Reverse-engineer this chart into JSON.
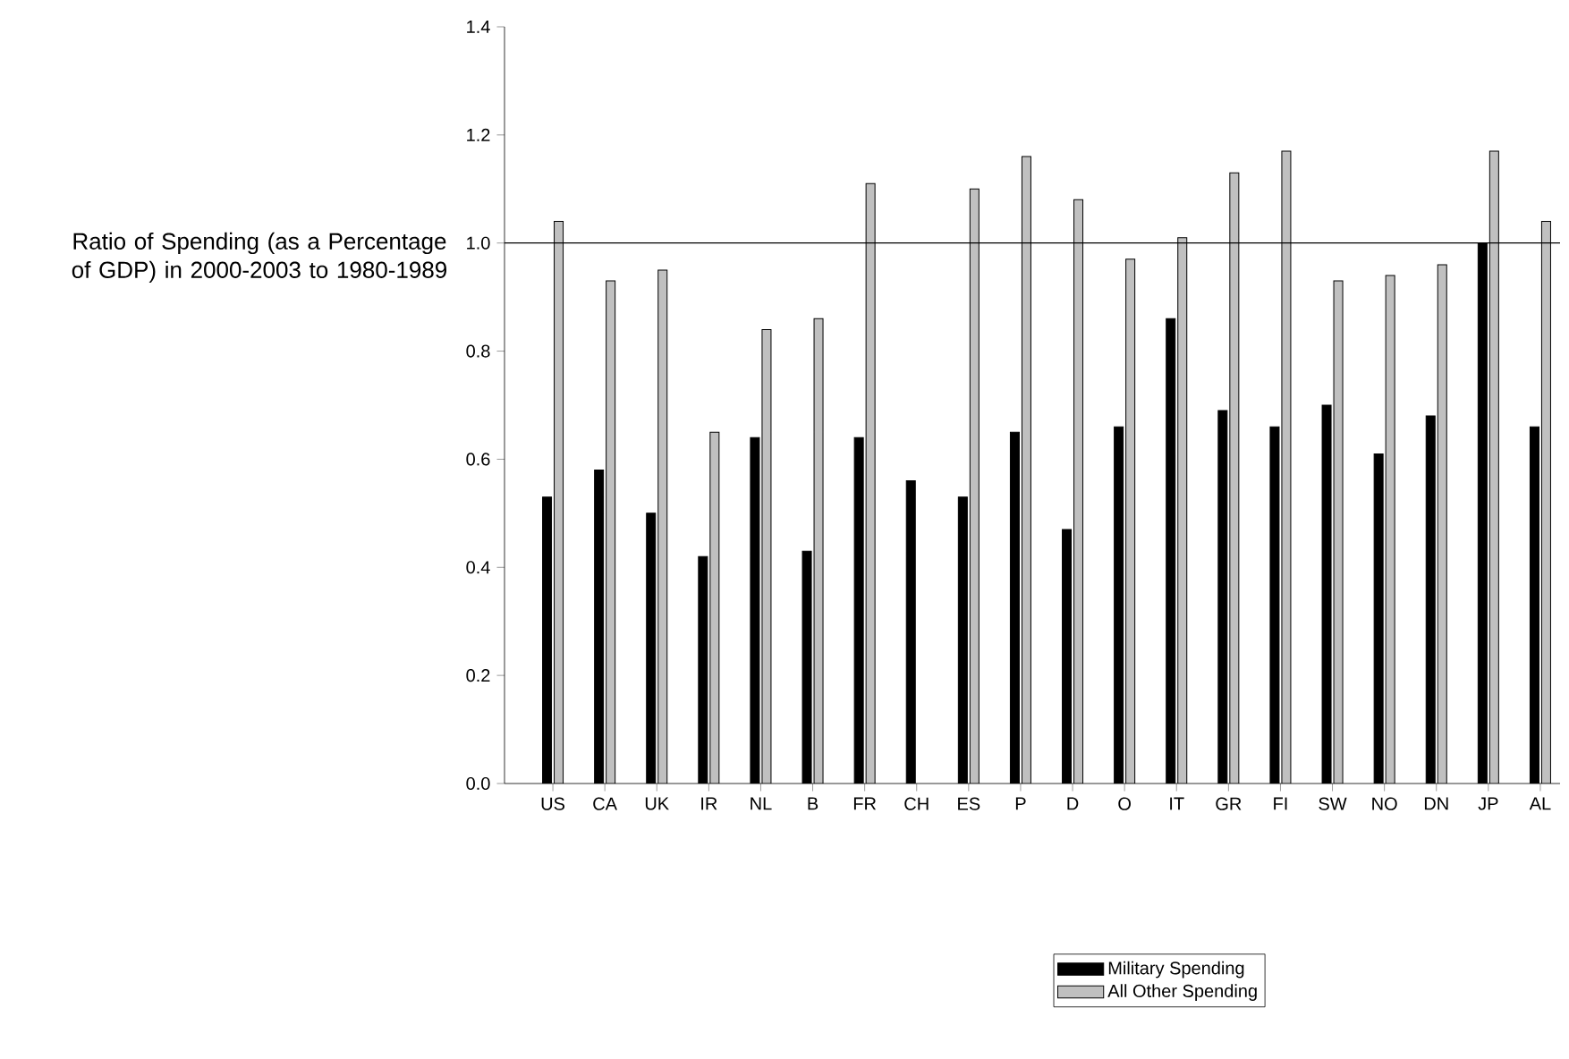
{
  "chart_data": {
    "type": "bar",
    "ylabel": "Ratio of Spending (as a Percentage of GDP) in 2000-2003 to 1980-1989",
    "categories": [
      "US",
      "CA",
      "UK",
      "IR",
      "NL",
      "B",
      "FR",
      "CH",
      "ES",
      "P",
      "D",
      "O",
      "IT",
      "GR",
      "FI",
      "SW",
      "NO",
      "DN",
      "JP",
      "AL"
    ],
    "series": [
      {
        "name": "Military Spending",
        "color": "#000000",
        "values": [
          0.53,
          0.58,
          0.5,
          0.42,
          0.64,
          0.43,
          0.64,
          0.56,
          0.53,
          0.65,
          0.47,
          0.66,
          0.86,
          0.69,
          0.66,
          0.7,
          0.61,
          0.68,
          1.0,
          0.66
        ]
      },
      {
        "name": "All Other Spending",
        "color": "#c0c0c0",
        "values": [
          1.04,
          0.93,
          0.95,
          0.65,
          0.84,
          0.86,
          1.11,
          null,
          1.1,
          1.16,
          1.08,
          0.97,
          1.01,
          1.13,
          1.17,
          0.93,
          0.94,
          0.96,
          1.17,
          1.04
        ]
      }
    ],
    "ylim": [
      0,
      1.4
    ],
    "yticks": [
      {
        "value": 0,
        "label": "0.0"
      },
      {
        "value": 0.2,
        "label": "0.2"
      },
      {
        "value": 0.4,
        "label": "0.4"
      },
      {
        "value": 0.6,
        "label": "0.6"
      },
      {
        "value": 0.8,
        "label": "0.8"
      },
      {
        "value": 1.0,
        "label": "1.0"
      },
      {
        "value": 1.2,
        "label": "1.2"
      },
      {
        "value": 1.4,
        "label": "1.4"
      }
    ],
    "ref_lines": [
      {
        "axis": "y",
        "value": 1.0,
        "color": "#000000"
      }
    ],
    "grid": false,
    "legend": "bottom"
  }
}
